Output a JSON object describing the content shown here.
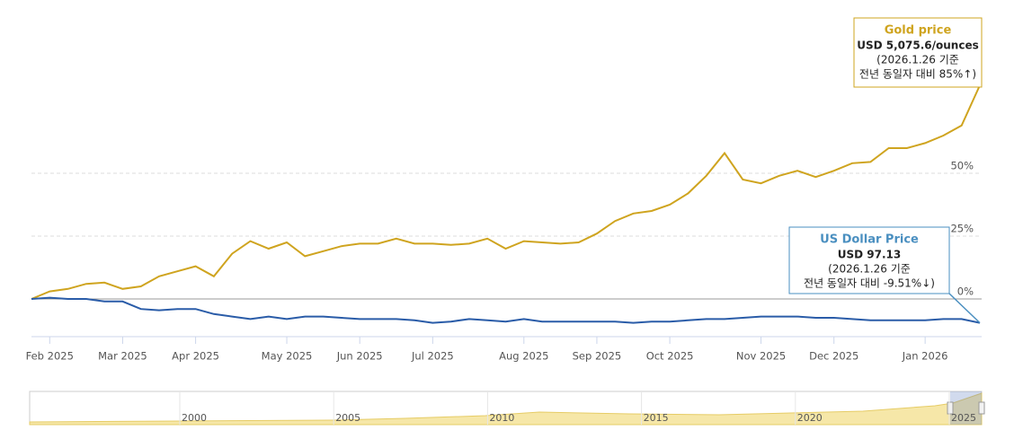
{
  "chart_data": {
    "type": "line",
    "categories": [
      null,
      "Feb 2025",
      null,
      null,
      null,
      "Mar 2025",
      null,
      null,
      null,
      "Apr 2025",
      null,
      null,
      null,
      null,
      "May 2025",
      null,
      null,
      null,
      "Jun 2025",
      null,
      null,
      null,
      "Jul 2025",
      null,
      null,
      null,
      null,
      "Aug 2025",
      null,
      null,
      null,
      "Sep 2025",
      null,
      null,
      null,
      "Oct 2025",
      null,
      null,
      null,
      null,
      "Nov 2025",
      null,
      null,
      null,
      "Dec 2025",
      null,
      null,
      null,
      null,
      "Jan 2026",
      null,
      null,
      null
    ],
    "series": [
      {
        "name": "Gold price",
        "color": "#cfa41f",
        "values": [
          0,
          3,
          4,
          6,
          6.5,
          4,
          5,
          9,
          11,
          13,
          9,
          18,
          23,
          20,
          22.5,
          17,
          19,
          21,
          22,
          22,
          24,
          22,
          22,
          21.5,
          22,
          24,
          20,
          23,
          22.5,
          22,
          22.5,
          26,
          31,
          34,
          35,
          37.5,
          42,
          49,
          58,
          47.5,
          46,
          49,
          51,
          48.5,
          51,
          54,
          54.5,
          60,
          60,
          62,
          65,
          69,
          85
        ]
      },
      {
        "name": "US Dollar Price",
        "color": "#2a5ca8",
        "values": [
          0,
          0.5,
          0,
          0,
          -1,
          -1,
          -4,
          -4.5,
          -4,
          -4,
          -6,
          -7,
          -8,
          -7,
          -8,
          -7,
          -7,
          -7.5,
          -8,
          -8,
          -8,
          -8.5,
          -9.5,
          -9,
          -8,
          -8.5,
          -9,
          -8,
          -9,
          -9,
          -9,
          -9,
          -9,
          -9.5,
          -9,
          -9,
          -8.5,
          -8,
          -8,
          -7.5,
          -7,
          -7,
          -7,
          -7.5,
          -7.5,
          -8,
          -8.5,
          -8.5,
          -8.5,
          -8.5,
          -8,
          -8,
          -9.51
        ]
      }
    ],
    "ylim": [
      -15,
      110
    ],
    "yticks": [
      {
        "value": 0,
        "label": "0%"
      },
      {
        "value": 25,
        "label": "25%"
      },
      {
        "value": 50,
        "label": "50%"
      }
    ],
    "grid": true,
    "annotations": [
      {
        "value": "USD 5,075.6/ounces",
        "note": "(2026.1.26 기준",
        "change": "전년 동일자 대비 85%↑)"
      },
      {
        "value": "USD 97.13",
        "note": "(2026.1.26 기준",
        "change": "전년 동일자 대비 -9.51%↓)"
      }
    ],
    "navigator": {
      "labels": [
        "2000",
        "2005",
        "2010",
        "2015",
        "2020",
        "2025"
      ]
    }
  }
}
